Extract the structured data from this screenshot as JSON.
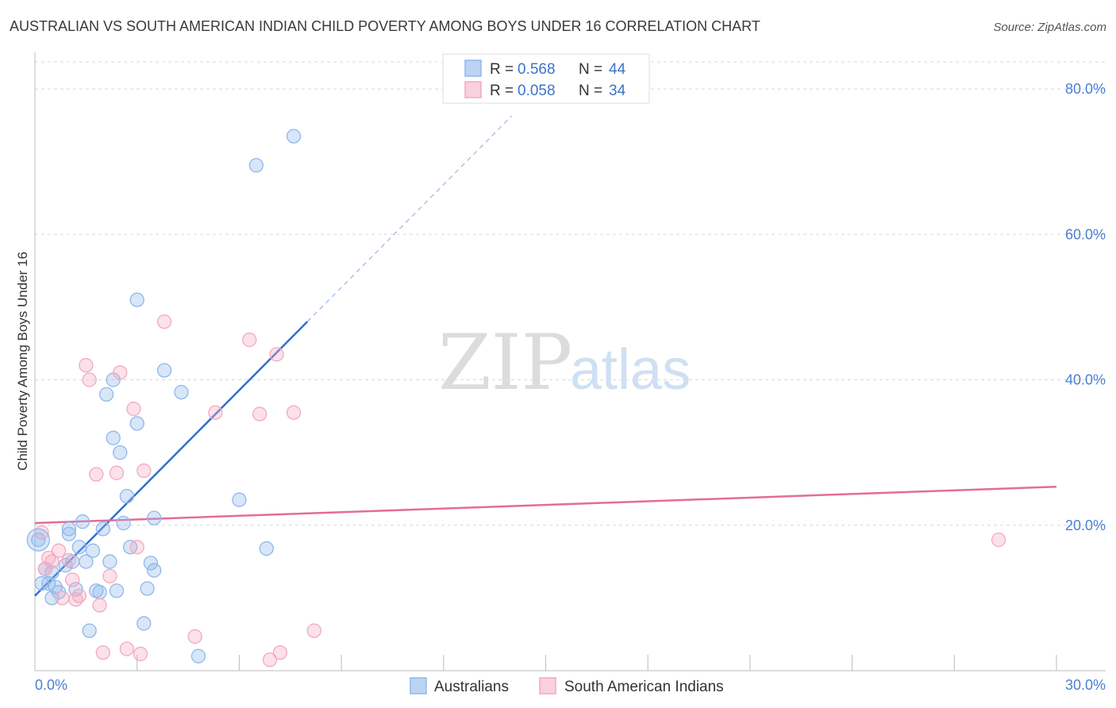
{
  "chart_data": {
    "type": "scatter",
    "title": "AUSTRALIAN VS SOUTH AMERICAN INDIAN CHILD POVERTY AMONG BOYS UNDER 16 CORRELATION CHART",
    "source": "Source: ZipAtlas.com",
    "ylabel": "Child Poverty Among Boys Under 16",
    "xlim": [
      0,
      30
    ],
    "ylim": [
      0,
      80
    ],
    "x_tick_labels": [
      "0.0%",
      "30.0%"
    ],
    "y_ticks": [
      20,
      40,
      60,
      80
    ],
    "y_tick_labels": [
      "20.0%",
      "40.0%",
      "60.0%",
      "80.0%"
    ],
    "grid": true,
    "watermark": {
      "zip": "ZIP",
      "atlas": "atlas"
    },
    "legend_top": [
      {
        "r_label": "R = ",
        "r_value": "0.568",
        "n_label": "N = ",
        "n_value": "44"
      },
      {
        "r_label": "R = ",
        "r_value": "0.058",
        "n_label": "N = ",
        "n_value": "34"
      }
    ],
    "series": [
      {
        "name": "Australians",
        "color": "#8fb8ec",
        "line_color": "#2f6fd1",
        "trend": {
          "x0": 0.0,
          "y0": 10.3,
          "x1": 8.0,
          "y1": 48.0,
          "dash_to_x": 14.0
        },
        "points": [
          [
            0.1,
            18.0
          ],
          [
            0.2,
            12.0
          ],
          [
            0.3,
            14.0
          ],
          [
            0.4,
            12.0
          ],
          [
            0.5,
            13.5
          ],
          [
            0.5,
            10.0
          ],
          [
            0.6,
            11.5
          ],
          [
            0.7,
            10.8
          ],
          [
            0.9,
            14.5
          ],
          [
            1.0,
            19.5
          ],
          [
            1.0,
            18.8
          ],
          [
            1.1,
            15.0
          ],
          [
            1.2,
            11.2
          ],
          [
            1.3,
            17.0
          ],
          [
            1.4,
            20.5
          ],
          [
            1.5,
            15.0
          ],
          [
            1.6,
            5.5
          ],
          [
            1.7,
            16.5
          ],
          [
            1.8,
            11.0
          ],
          [
            1.9,
            10.8
          ],
          [
            2.0,
            19.5
          ],
          [
            2.1,
            38.0
          ],
          [
            2.2,
            15.0
          ],
          [
            2.3,
            40.0
          ],
          [
            2.3,
            32.0
          ],
          [
            2.4,
            11.0
          ],
          [
            2.5,
            30.0
          ],
          [
            2.7,
            24.0
          ],
          [
            2.6,
            20.3
          ],
          [
            2.8,
            17.0
          ],
          [
            3.0,
            51.0
          ],
          [
            3.0,
            34.0
          ],
          [
            3.3,
            11.3
          ],
          [
            3.2,
            6.5
          ],
          [
            3.4,
            14.8
          ],
          [
            3.5,
            13.8
          ],
          [
            3.8,
            41.3
          ],
          [
            4.3,
            38.3
          ],
          [
            4.8,
            2.0
          ],
          [
            6.0,
            23.5
          ],
          [
            6.5,
            69.5
          ],
          [
            6.8,
            16.8
          ],
          [
            7.6,
            73.5
          ],
          [
            3.5,
            21.0
          ]
        ]
      },
      {
        "name": "South American Indians",
        "color": "#f4a9c0",
        "line_color": "#e56b98",
        "trend": {
          "x0": 0.0,
          "y0": 20.3,
          "x1": 30.0,
          "y1": 25.3
        },
        "points": [
          [
            0.2,
            19.0
          ],
          [
            0.3,
            14.0
          ],
          [
            0.4,
            15.5
          ],
          [
            0.5,
            15.0
          ],
          [
            0.7,
            16.5
          ],
          [
            0.8,
            10.0
          ],
          [
            1.0,
            15.2
          ],
          [
            1.1,
            12.5
          ],
          [
            1.2,
            9.8
          ],
          [
            1.3,
            10.3
          ],
          [
            1.5,
            42.0
          ],
          [
            1.6,
            40.0
          ],
          [
            1.8,
            27.0
          ],
          [
            1.9,
            9.0
          ],
          [
            2.0,
            2.5
          ],
          [
            2.2,
            13.0
          ],
          [
            2.4,
            27.2
          ],
          [
            2.5,
            41.0
          ],
          [
            2.7,
            3.0
          ],
          [
            2.9,
            36.0
          ],
          [
            3.0,
            17.0
          ],
          [
            3.1,
            2.3
          ],
          [
            3.2,
            27.5
          ],
          [
            3.8,
            48.0
          ],
          [
            4.7,
            4.7
          ],
          [
            5.3,
            35.5
          ],
          [
            6.3,
            45.5
          ],
          [
            6.6,
            35.3
          ],
          [
            6.9,
            1.5
          ],
          [
            7.1,
            43.5
          ],
          [
            7.2,
            2.5
          ],
          [
            7.6,
            35.5
          ],
          [
            8.2,
            5.5
          ],
          [
            28.3,
            18.0
          ]
        ]
      }
    ]
  }
}
